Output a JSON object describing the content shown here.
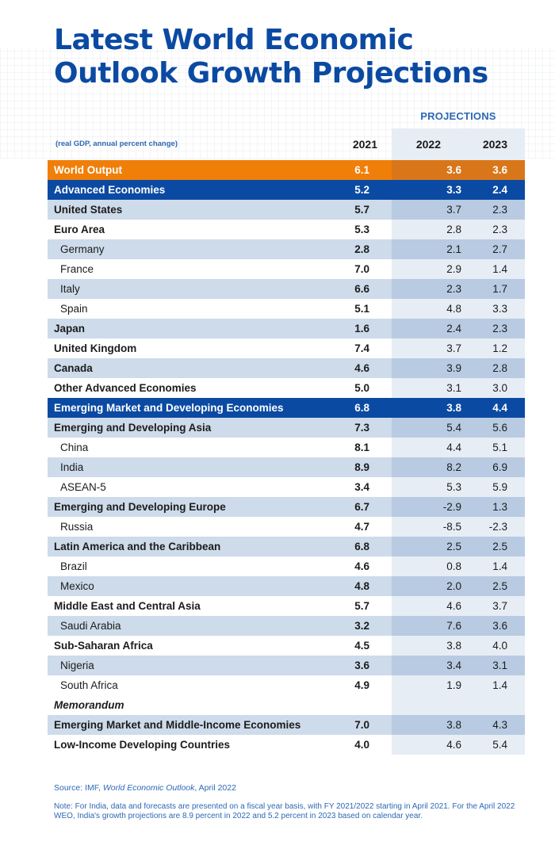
{
  "header": {
    "title_line1": "Latest World Economic",
    "title_line2": "Outlook Growth Projections",
    "projections_label": "PROJECTIONS",
    "subtitle": "(real GDP, annual percent change)"
  },
  "colors": {
    "brand_blue": "#0b4aa2",
    "accent_orange": "#f07f0a",
    "row_shade": "#cddbea",
    "projection_band": "#e7edf5",
    "text_blue": "#2d68b5"
  },
  "chart_data": {
    "type": "table",
    "title": "Latest World Economic Outlook Growth Projections",
    "subtitle": "(real GDP, annual percent change)",
    "columns": [
      "2021",
      "2022",
      "2023"
    ],
    "projection_columns": [
      "2022",
      "2023"
    ],
    "rows": [
      {
        "label": "World Output",
        "style": "orange",
        "values": [
          "6.1",
          "3.6",
          "3.6"
        ]
      },
      {
        "label": "Advanced Economies",
        "style": "blue",
        "values": [
          "5.2",
          "3.3",
          "2.4"
        ]
      },
      {
        "label": "United States",
        "style": "shade-bold",
        "values": [
          "5.7",
          "3.7",
          "2.3"
        ]
      },
      {
        "label": "Euro Area",
        "style": "plain-bold",
        "values": [
          "5.3",
          "2.8",
          "2.3"
        ]
      },
      {
        "label": "Germany",
        "style": "shade-indent",
        "values": [
          "2.8",
          "2.1",
          "2.7"
        ]
      },
      {
        "label": "France",
        "style": "plain-indent",
        "values": [
          "7.0",
          "2.9",
          "1.4"
        ]
      },
      {
        "label": "Italy",
        "style": "shade-indent",
        "values": [
          "6.6",
          "2.3",
          "1.7"
        ]
      },
      {
        "label": "Spain",
        "style": "plain-indent",
        "values": [
          "5.1",
          "4.8",
          "3.3"
        ]
      },
      {
        "label": "Japan",
        "style": "shade-bold",
        "values": [
          "1.6",
          "2.4",
          "2.3"
        ]
      },
      {
        "label": "United Kingdom",
        "style": "plain-bold",
        "values": [
          "7.4",
          "3.7",
          "1.2"
        ]
      },
      {
        "label": "Canada",
        "style": "shade-bold",
        "values": [
          "4.6",
          "3.9",
          "2.8"
        ]
      },
      {
        "label": "Other Advanced Economies",
        "style": "plain-bold",
        "values": [
          "5.0",
          "3.1",
          "3.0"
        ]
      },
      {
        "label": "Emerging Market and Developing Economies",
        "style": "blue",
        "values": [
          "6.8",
          "3.8",
          "4.4"
        ]
      },
      {
        "label": "Emerging and Developing Asia",
        "style": "shade-bold",
        "values": [
          "7.3",
          "5.4",
          "5.6"
        ]
      },
      {
        "label": "China",
        "style": "plain-indent",
        "values": [
          "8.1",
          "4.4",
          "5.1"
        ]
      },
      {
        "label": "India",
        "style": "shade-indent",
        "values": [
          "8.9",
          "8.2",
          "6.9"
        ]
      },
      {
        "label": "ASEAN-5",
        "style": "plain-indent",
        "values": [
          "3.4",
          "5.3",
          "5.9"
        ]
      },
      {
        "label": "Emerging and Developing Europe",
        "style": "shade-bold",
        "values": [
          "6.7",
          "-2.9",
          "1.3"
        ]
      },
      {
        "label": "Russia",
        "style": "plain-indent",
        "values": [
          "4.7",
          "-8.5",
          "-2.3"
        ]
      },
      {
        "label": "Latin America and the Caribbean",
        "style": "shade-bold",
        "values": [
          "6.8",
          "2.5",
          "2.5"
        ]
      },
      {
        "label": "Brazil",
        "style": "plain-indent",
        "values": [
          "4.6",
          "0.8",
          "1.4"
        ]
      },
      {
        "label": "Mexico",
        "style": "shade-indent",
        "values": [
          "4.8",
          "2.0",
          "2.5"
        ]
      },
      {
        "label": "Middle East and Central Asia",
        "style": "plain-bold",
        "values": [
          "5.7",
          "4.6",
          "3.7"
        ]
      },
      {
        "label": "Saudi Arabia",
        "style": "shade-indent",
        "values": [
          "3.2",
          "7.6",
          "3.6"
        ]
      },
      {
        "label": "Sub-Saharan Africa",
        "style": "plain-bold",
        "values": [
          "4.5",
          "3.8",
          "4.0"
        ]
      },
      {
        "label": "Nigeria",
        "style": "shade-indent",
        "values": [
          "3.6",
          "3.4",
          "3.1"
        ]
      },
      {
        "label": "South Africa",
        "style": "plain-indent",
        "values": [
          "4.9",
          "1.9",
          "1.4"
        ]
      },
      {
        "label": "Memorandum",
        "style": "memo",
        "values": [
          "",
          "",
          ""
        ]
      },
      {
        "label": "Emerging Market and Middle-Income Economies",
        "style": "shade-bold",
        "values": [
          "7.0",
          "3.8",
          "4.3"
        ]
      },
      {
        "label": "Low-Income Developing Countries",
        "style": "plain-bold",
        "values": [
          "4.0",
          "4.6",
          "5.4"
        ]
      }
    ]
  },
  "footer": {
    "source_prefix": "Source: IMF, ",
    "source_title": "World Economic Outlook",
    "source_suffix": ", April 2022",
    "note": "Note: For India, data and forecasts are presented on a fiscal year basis, with FY 2021/2022 starting in April 2021. For the April 2022 WEO, India's growth projections are 8.9 percent in 2022 and 5.2 percent in 2023 based on calendar year."
  }
}
